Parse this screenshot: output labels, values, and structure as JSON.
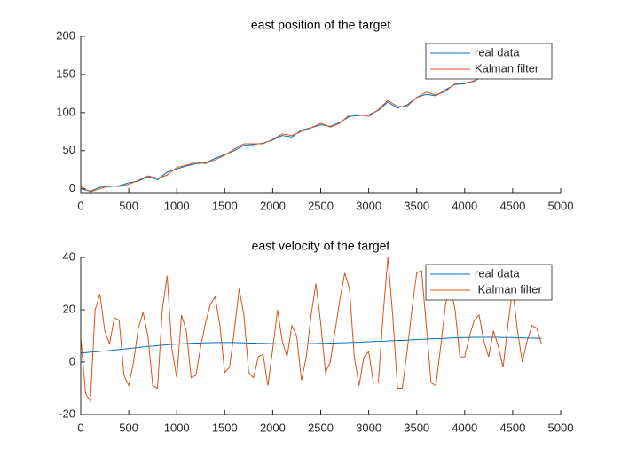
{
  "chart_data": [
    {
      "type": "line",
      "title": "east position of the target",
      "x": [
        0,
        100,
        200,
        300,
        400,
        500,
        600,
        700,
        800,
        900,
        1000,
        1100,
        1200,
        1300,
        1400,
        1500,
        1600,
        1700,
        1800,
        1900,
        2000,
        2100,
        2200,
        2300,
        2400,
        2500,
        2600,
        2700,
        2800,
        2900,
        3000,
        3100,
        3200,
        3300,
        3400,
        3500,
        3600,
        3700,
        3800,
        3900,
        4000,
        4100,
        4200,
        4300,
        4400,
        4500,
        4600,
        4700,
        4800
      ],
      "series": [
        {
          "name": "real data",
          "color": "#0072BD",
          "values": [
            0,
            -3,
            2,
            3,
            4,
            8,
            10,
            16,
            12,
            22,
            26,
            30,
            33,
            34,
            40,
            45,
            50,
            57,
            58,
            60,
            64,
            70,
            68,
            77,
            80,
            84,
            82,
            87,
            95,
            96,
            97,
            103,
            114,
            106,
            110,
            120,
            124,
            122,
            130,
            137,
            138,
            142,
            148,
            150,
            155,
            158,
            162,
            165,
            168
          ]
        },
        {
          "name": "Kalman filter",
          "color": "#D95319",
          "values": [
            3,
            -4,
            0,
            4,
            3,
            6,
            11,
            17,
            14,
            18,
            28,
            31,
            35,
            33,
            38,
            44,
            52,
            59,
            59,
            59,
            65,
            72,
            70,
            75,
            80,
            86,
            81,
            86,
            97,
            97,
            95,
            104,
            116,
            108,
            108,
            120,
            127,
            123,
            128,
            138,
            139,
            141,
            149,
            151,
            154,
            159,
            163,
            164,
            169
          ]
        }
      ],
      "xlim": [
        0,
        5000
      ],
      "xticks": [
        0,
        500,
        1000,
        1500,
        2000,
        2500,
        3000,
        3500,
        4000,
        4500,
        5000
      ],
      "ylim": [
        -5,
        200
      ],
      "yticks": [
        0,
        50,
        100,
        150,
        200
      ],
      "legend": "northeast"
    },
    {
      "type": "line",
      "title": "east velocity of the target",
      "x": [
        0,
        50,
        100,
        150,
        200,
        250,
        300,
        350,
        400,
        450,
        500,
        550,
        600,
        650,
        700,
        750,
        800,
        850,
        900,
        950,
        1000,
        1050,
        1100,
        1150,
        1200,
        1250,
        1300,
        1350,
        1400,
        1450,
        1500,
        1550,
        1600,
        1650,
        1700,
        1750,
        1800,
        1850,
        1900,
        1950,
        2000,
        2050,
        2100,
        2150,
        2200,
        2250,
        2300,
        2350,
        2400,
        2450,
        2500,
        2550,
        2600,
        2650,
        2700,
        2750,
        2800,
        2850,
        2900,
        2950,
        3000,
        3050,
        3100,
        3150,
        3200,
        3250,
        3300,
        3350,
        3400,
        3450,
        3500,
        3550,
        3600,
        3650,
        3700,
        3750,
        3800,
        3850,
        3900,
        3950,
        4000,
        4050,
        4100,
        4150,
        4200,
        4250,
        4300,
        4350,
        4400,
        4450,
        4500,
        4550,
        4600,
        4650,
        4700,
        4750,
        4800
      ],
      "series": [
        {
          "name": "real data",
          "color": "#0072BD",
          "values": [
            3.5,
            3.6,
            3.8,
            3.9,
            4.1,
            4.3,
            4.4,
            4.6,
            4.8,
            5.0,
            5.2,
            5.4,
            5.6,
            5.8,
            6.0,
            6.1,
            6.3,
            6.5,
            6.6,
            6.8,
            6.9,
            7.0,
            7.1,
            7.2,
            7.3,
            7.3,
            7.4,
            7.4,
            7.5,
            7.5,
            7.5,
            7.5,
            7.5,
            7.4,
            7.4,
            7.3,
            7.3,
            7.2,
            7.2,
            7.1,
            7.1,
            7.0,
            7.0,
            7.0,
            7.0,
            7.0,
            7.0,
            7.0,
            7.1,
            7.1,
            7.2,
            7.2,
            7.3,
            7.3,
            7.4,
            7.4,
            7.5,
            7.6,
            7.6,
            7.7,
            7.8,
            7.9,
            8.0,
            8.0,
            8.1,
            8.2,
            8.3,
            8.3,
            8.4,
            8.5,
            8.6,
            8.7,
            8.8,
            8.9,
            9.0,
            9.0,
            9.1,
            9.2,
            9.3,
            9.3,
            9.4,
            9.4,
            9.5,
            9.5,
            9.5,
            9.5,
            9.5,
            9.5,
            9.4,
            9.4,
            9.4,
            9.3,
            9.3,
            9.2,
            9.2,
            9.1,
            9.1
          ]
        },
        {
          "name": " Kalman filter",
          "color": "#D95319",
          "values": [
            9.5,
            -12,
            -15,
            20,
            26,
            12,
            7,
            17,
            16,
            -5,
            -9,
            0,
            13,
            19,
            10,
            -9,
            -10,
            20,
            33,
            5,
            -6,
            18,
            12,
            -6,
            -5,
            6,
            15,
            22,
            25,
            14,
            -4,
            -2,
            12,
            28,
            18,
            -4,
            -6,
            2,
            3,
            -9,
            5,
            20,
            8,
            2,
            14,
            10,
            -7,
            2,
            18,
            30,
            15,
            -4,
            0,
            12,
            24,
            34,
            28,
            2,
            -9,
            2,
            4,
            -8,
            -8,
            18,
            40,
            18,
            -10,
            -10,
            4,
            20,
            34,
            35,
            14,
            -8,
            -9,
            6,
            22,
            29,
            20,
            2,
            2,
            10,
            16,
            18,
            8,
            2,
            12,
            6,
            -2,
            14,
            28,
            12,
            0,
            8,
            14,
            13,
            7
          ]
        }
      ],
      "xlim": [
        0,
        5000
      ],
      "xticks": [
        0,
        500,
        1000,
        1500,
        2000,
        2500,
        3000,
        3500,
        4000,
        4500,
        5000
      ],
      "ylim": [
        -20,
        40
      ],
      "yticks": [
        -20,
        0,
        20,
        40
      ],
      "legend": "northeast"
    }
  ]
}
